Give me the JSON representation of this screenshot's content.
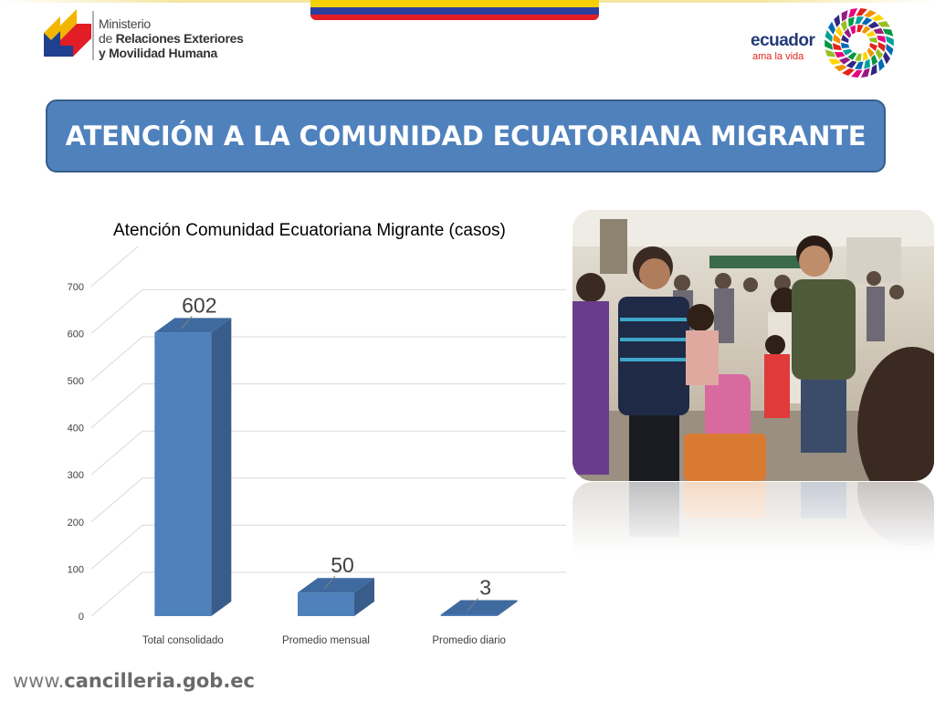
{
  "header": {
    "ministry_line1": "Ministerio",
    "ministry_line2_prefix": "de ",
    "ministry_line2_bold": "Relaciones Exteriores",
    "ministry_line3": "y Movilidad Humana",
    "ecuador_word": "ecuador",
    "ecuador_tagline": "ama la vida"
  },
  "banner": {
    "title": "ATENCIÓN A LA COMUNIDAD ECUATORIANA MIGRANTE"
  },
  "chart_data": {
    "type": "bar",
    "title": "Atención Comunidad Ecuatoriana Migrante (casos)",
    "categories": [
      "Total consolidado",
      "Promedio mensual",
      "Promedio diario"
    ],
    "values": [
      602,
      50,
      3
    ],
    "data_labels": [
      "602",
      "50",
      "3"
    ],
    "xlabel": "",
    "ylabel": "",
    "ylim": [
      0,
      700
    ],
    "yticks": [
      "0",
      "100",
      "200",
      "300",
      "400",
      "500",
      "600",
      "700"
    ],
    "grid": true,
    "style": "3d-column",
    "colors": {
      "bar_front": "#4f81bd",
      "bar_side": "#385d8a",
      "bar_top": "#3f6aa0"
    }
  },
  "footer": {
    "prefix": "www.",
    "domain": "cancilleria.gob.ec"
  }
}
